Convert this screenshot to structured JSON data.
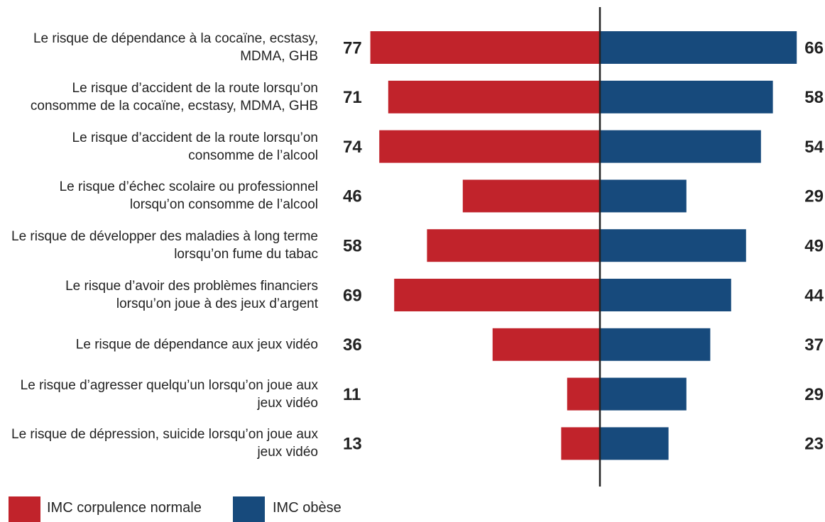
{
  "chart_data": {
    "type": "diverging-bar",
    "categories": [
      "Le risque de dépendance à la cocaïne, ecstasy, MDMA, GHB",
      "Le risque d’accident de la route lorsqu’on consomme de la cocaïne, ecstasy, MDMA, GHB",
      "Le risque d’accident de la route lorsqu’on consomme de l’alcool",
      "Le risque d’échec scolaire ou professionnel lorsqu’on consomme de l’alcool",
      "Le risque de développer des maladies à long terme lorsqu’on fume du tabac",
      "Le risque d’avoir des problèmes financiers lorsqu’on joue à des jeux d’argent",
      "Le risque de dépendance aux jeux vidéo",
      "Le risque d’agresser quelqu’un lorsqu’on joue aux jeux vidéo",
      "Le risque de dépression, suicide lorsqu’on joue aux jeux vidéo"
    ],
    "series": [
      {
        "name": "IMC corpulence normale",
        "color": "#c1232b",
        "values": [
          77,
          71,
          74,
          46,
          58,
          69,
          36,
          11,
          13
        ]
      },
      {
        "name": "IMC obèse",
        "color": "#174a7c",
        "values": [
          66,
          58,
          54,
          29,
          49,
          44,
          37,
          29,
          23
        ]
      }
    ]
  }
}
